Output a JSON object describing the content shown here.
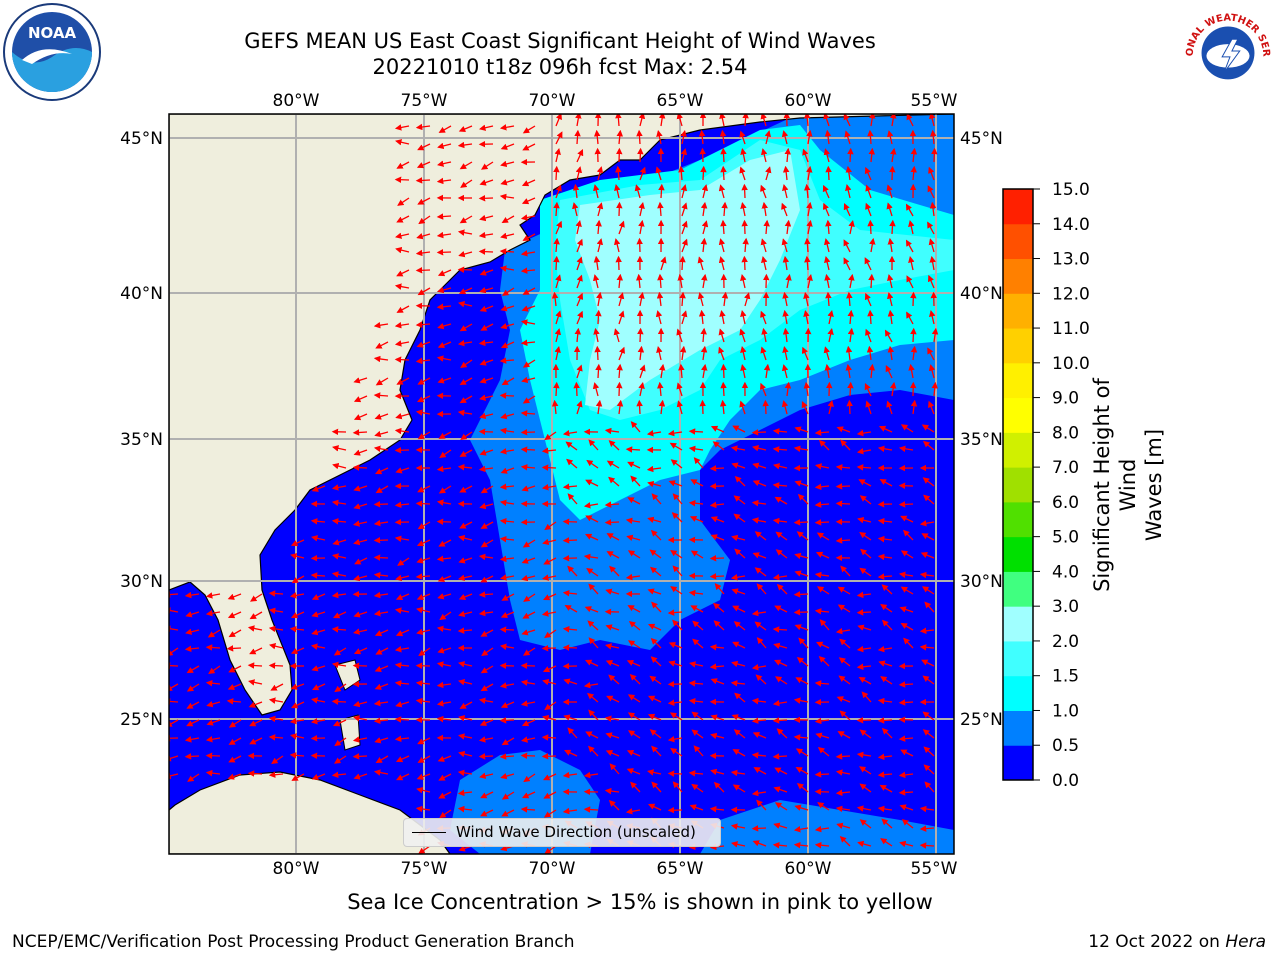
{
  "title": {
    "line1": "GEFS MEAN US East Coast Significant Height of Wind Waves",
    "line2": "20221010 t18z 096h fcst    Max: 2.54"
  },
  "map": {
    "lon_labels": [
      "80°W",
      "75°W",
      "70°W",
      "65°W",
      "60°W",
      "55°W"
    ],
    "lat_labels": [
      "45°N",
      "40°N",
      "35°N",
      "30°N",
      "25°N"
    ],
    "lon_range": [
      -85,
      -54.5
    ],
    "lat_range": [
      20.5,
      46
    ],
    "gridlines": true,
    "arrow_color": "#ff0000",
    "land_color": "#efeedd"
  },
  "colorbar": {
    "label": "Significant Height of Wind Waves [m]",
    "label_line1": "Significant Height of Wind",
    "label_line2": "Waves [m]",
    "levels": [
      "0.0",
      "0.5",
      "1.0",
      "1.5",
      "2.0",
      "3.0",
      "4.0",
      "5.0",
      "6.0",
      "7.0",
      "8.0",
      "9.0",
      "10.0",
      "11.0",
      "12.0",
      "13.0",
      "14.0",
      "15.0"
    ],
    "colors": [
      "#0000ff",
      "#0080ff",
      "#00ffff",
      "#40ffff",
      "#a0ffff",
      "#40ff80",
      "#00e000",
      "#50e000",
      "#a0e000",
      "#d0f000",
      "#ffff00",
      "#fff000",
      "#ffd000",
      "#ffb000",
      "#ff8000",
      "#ff5000",
      "#ff2000"
    ]
  },
  "legend": {
    "label": "Wind Wave Direction (unscaled)"
  },
  "notes": {
    "sea_ice": "Sea Ice Concentration > 15% is shown in pink to yellow",
    "producer": "NCEP/EMC/Verification Post Processing Product Generation Branch",
    "date": "12 Oct 2022 on",
    "host": "Hera"
  },
  "logos": {
    "left": "NOAA",
    "right": "NATIONAL WEATHER SERVICE"
  }
}
